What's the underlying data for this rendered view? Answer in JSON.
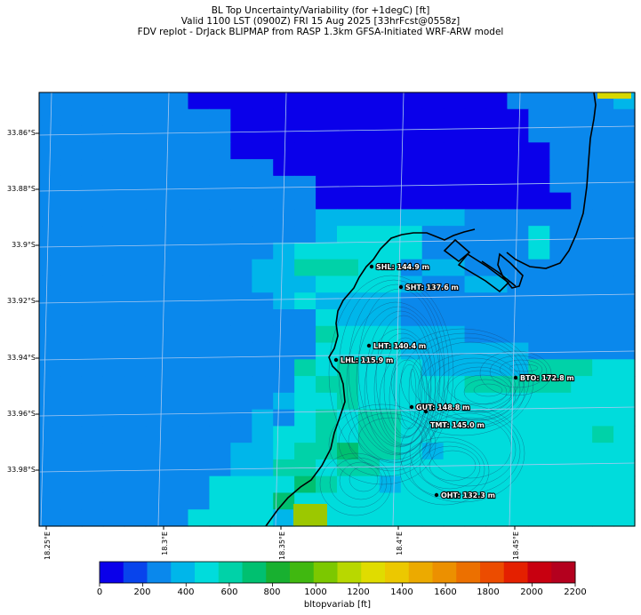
{
  "header": {
    "line1": "BL Top Uncertainty/Variability (for +1degC) [ft]",
    "line2": "Valid 1100 LST (0900Z) FRI 15 Aug 2025 [33hrFcst@0558z]",
    "line3": "FDV replot - DrJack BLIPMAP from RASP 1.3km GFSA-Initiated WRF-ARW model"
  },
  "map": {
    "lat_labels": [
      "33.86°S",
      "33.88°S",
      "33.9°S",
      "33.92°S",
      "33.94°S",
      "33.96°S",
      "33.98°S"
    ],
    "lon_labels": [
      "18.25°E",
      "18.3°E",
      "18.35°E",
      "18.4°E",
      "18.45°E"
    ],
    "sites": [
      {
        "code": "SHL",
        "value": "SHL: 144.9 m"
      },
      {
        "code": "SHT",
        "value": "SHT: 137.6 m"
      },
      {
        "code": "LHT",
        "value": "LHT: 140.4 m"
      },
      {
        "code": "LHL",
        "value": "LHL: 115.9 m"
      },
      {
        "code": "BTO",
        "value": "BTO: 172.8 m"
      },
      {
        "code": "GUT",
        "value": "GUT: 148.8 m"
      },
      {
        "code": "TMT",
        "value": "TMT: 145.0 m"
      },
      {
        "code": "OHT",
        "value": "OHT: 132.3 m"
      }
    ],
    "colors": {
      "frame": "#000000",
      "coast": "#000000",
      "grid": "#a8c8f0",
      "site": "#000000"
    }
  },
  "colorbar": {
    "ticks": [
      "0",
      "200",
      "400",
      "600",
      "800",
      "1000",
      "1200",
      "1400",
      "1600",
      "1800",
      "2000",
      "2200"
    ],
    "label": "bltopvariab [ft]",
    "colors": [
      "#0a00ea",
      "#0844ec",
      "#0a88ec",
      "#00b6ea",
      "#00dcdc",
      "#00d2a8",
      "#00c070",
      "#18b030",
      "#40b810",
      "#7cc800",
      "#b8d800",
      "#e0dc00",
      "#ecc800",
      "#ecaa00",
      "#ec9000",
      "#ec7000",
      "#ec4c00",
      "#e42000",
      "#c80010",
      "#b4001e"
    ]
  },
  "field": {
    "legend_levels": [
      0,
      100,
      200,
      300,
      400,
      500,
      600,
      700,
      800,
      900,
      1000,
      1100,
      1200,
      1300,
      1400,
      1500,
      1600,
      1700,
      1800,
      1900,
      2000,
      2100,
      2200
    ],
    "rows": [
      "2222222111111111111111222223",
      "2222222221111111111111122222",
      "2222222221111111111111122222",
      "2222222221111111111111112222",
      "2222222222211111111111112222",
      "2222222222222111111111112222",
      "2222222222222111111111111222",
      "2222222222222333333322222222",
      "2222222222222344442222242222",
      "2222222222234444442222242222",
      "2222222222335554423322222222",
      "2222222222333444432233222222",
      "2222222222234333322222222222",
      "2222222222222433322222222222",
      "2222222222222544433322222222",
      "2222222222222444433333322222",
      "2222222222225454443333355544",
      "2222222222224554444455555444",
      "2222222222234454444444444444",
      "2222222222324545544444444444",
      "2222222222344545544444444454",
      "2222222223345565543444444444",
      "2222222223355455444444444444",
      "2222222244446544344444444444",
      "2222222244464444444444444444",
      "2222222444434444444444444444"
    ]
  }
}
